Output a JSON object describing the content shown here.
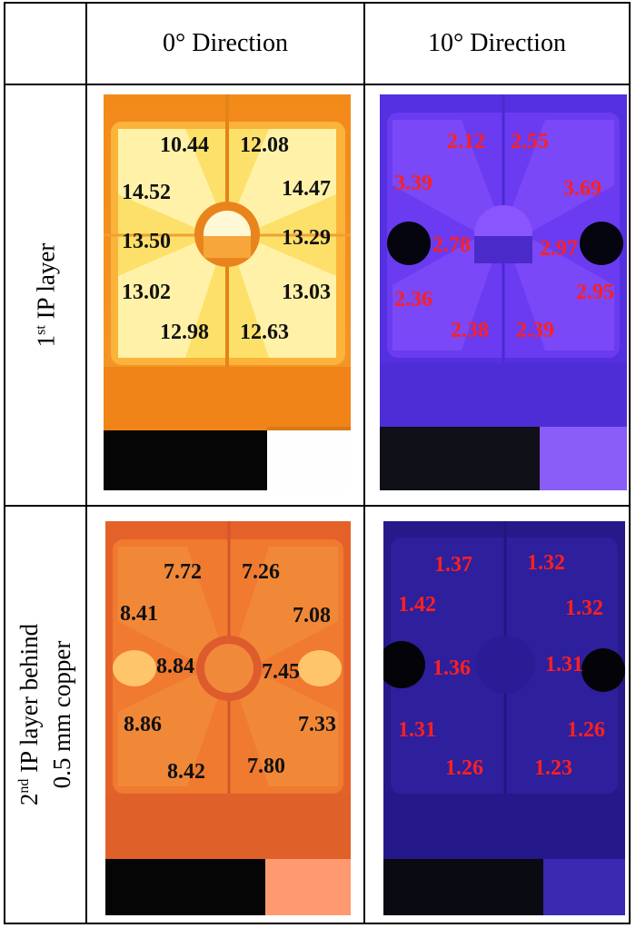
{
  "table": {
    "col_headers": [
      {
        "main": "0°",
        "rest": "Direction"
      },
      {
        "main": "10°",
        "rest": "Direction"
      }
    ],
    "row_headers": [
      {
        "prefix": "1",
        "sup": "st",
        "suffix": " IP layer",
        "line2": ""
      },
      {
        "prefix": "2",
        "sup": "nd",
        "suffix": " IP layer behind",
        "line2": "0.5 mm copper"
      }
    ]
  },
  "panels": {
    "r1c1": [
      "10.44",
      "12.08",
      "14.52",
      "14.47",
      "13.50",
      "13.29",
      "13.02",
      "13.03",
      "12.98",
      "12.63"
    ],
    "r1c2": [
      "2.12",
      "2.55",
      "3.39",
      "3.69",
      "2.78",
      "2.97",
      "2.36",
      "2.95",
      "2.38",
      "2.39"
    ],
    "r2c1": [
      "7.72",
      "7.26",
      "8.41",
      "7.08",
      "8.84",
      "7.45",
      "8.86",
      "7.33",
      "8.42",
      "7.80"
    ],
    "r2c2": [
      "1.37",
      "1.32",
      "1.42",
      "1.32",
      "1.36",
      "1.31",
      "1.31",
      "1.26",
      "1.26",
      "1.23"
    ]
  },
  "colors": {
    "border": "#000000",
    "label_dark": "#111111",
    "label_red": "#ff2020",
    "hot_orange": "#f08a1c",
    "hot_yellow": "#ffe98a",
    "cool_violet": "#5a2ee6",
    "deep_blue": "#2a1b8c"
  }
}
